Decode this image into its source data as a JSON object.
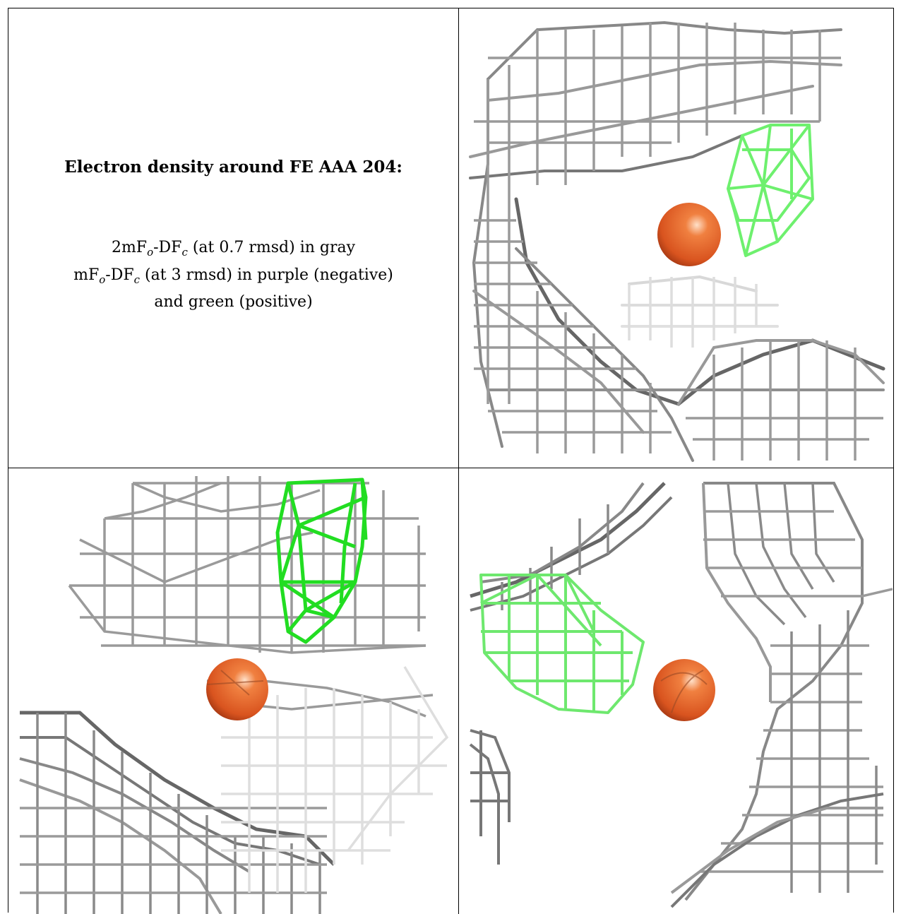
{
  "caption": {
    "title": "Electron density around FE AAA 204:",
    "line1": {
      "pre": "2mF",
      "sub1": "o",
      "mid": "-DF",
      "sub2": "c",
      "post": " (at 0.7 rmsd) in gray"
    },
    "line2": {
      "pre": "mF",
      "sub1": "o",
      "mid": "-DF",
      "sub2": "c",
      "post": " (at 3 rmsd) in purple (negative)"
    },
    "line3": "and green (positive)"
  },
  "colors": {
    "mesh_gray": "#8a8a8a",
    "mesh_dark": "#555555",
    "mesh_light": "#cfcfcf",
    "positive_green": "#22dd22",
    "positive_green_light": "#7ef07e",
    "iron_orange": "#e8662a",
    "iron_highlight": "#ffd2b0",
    "iron_shadow": "#b8401a"
  },
  "icons": {
    "atom": "iron-atom-sphere",
    "mesh": "electron-density-mesh"
  }
}
